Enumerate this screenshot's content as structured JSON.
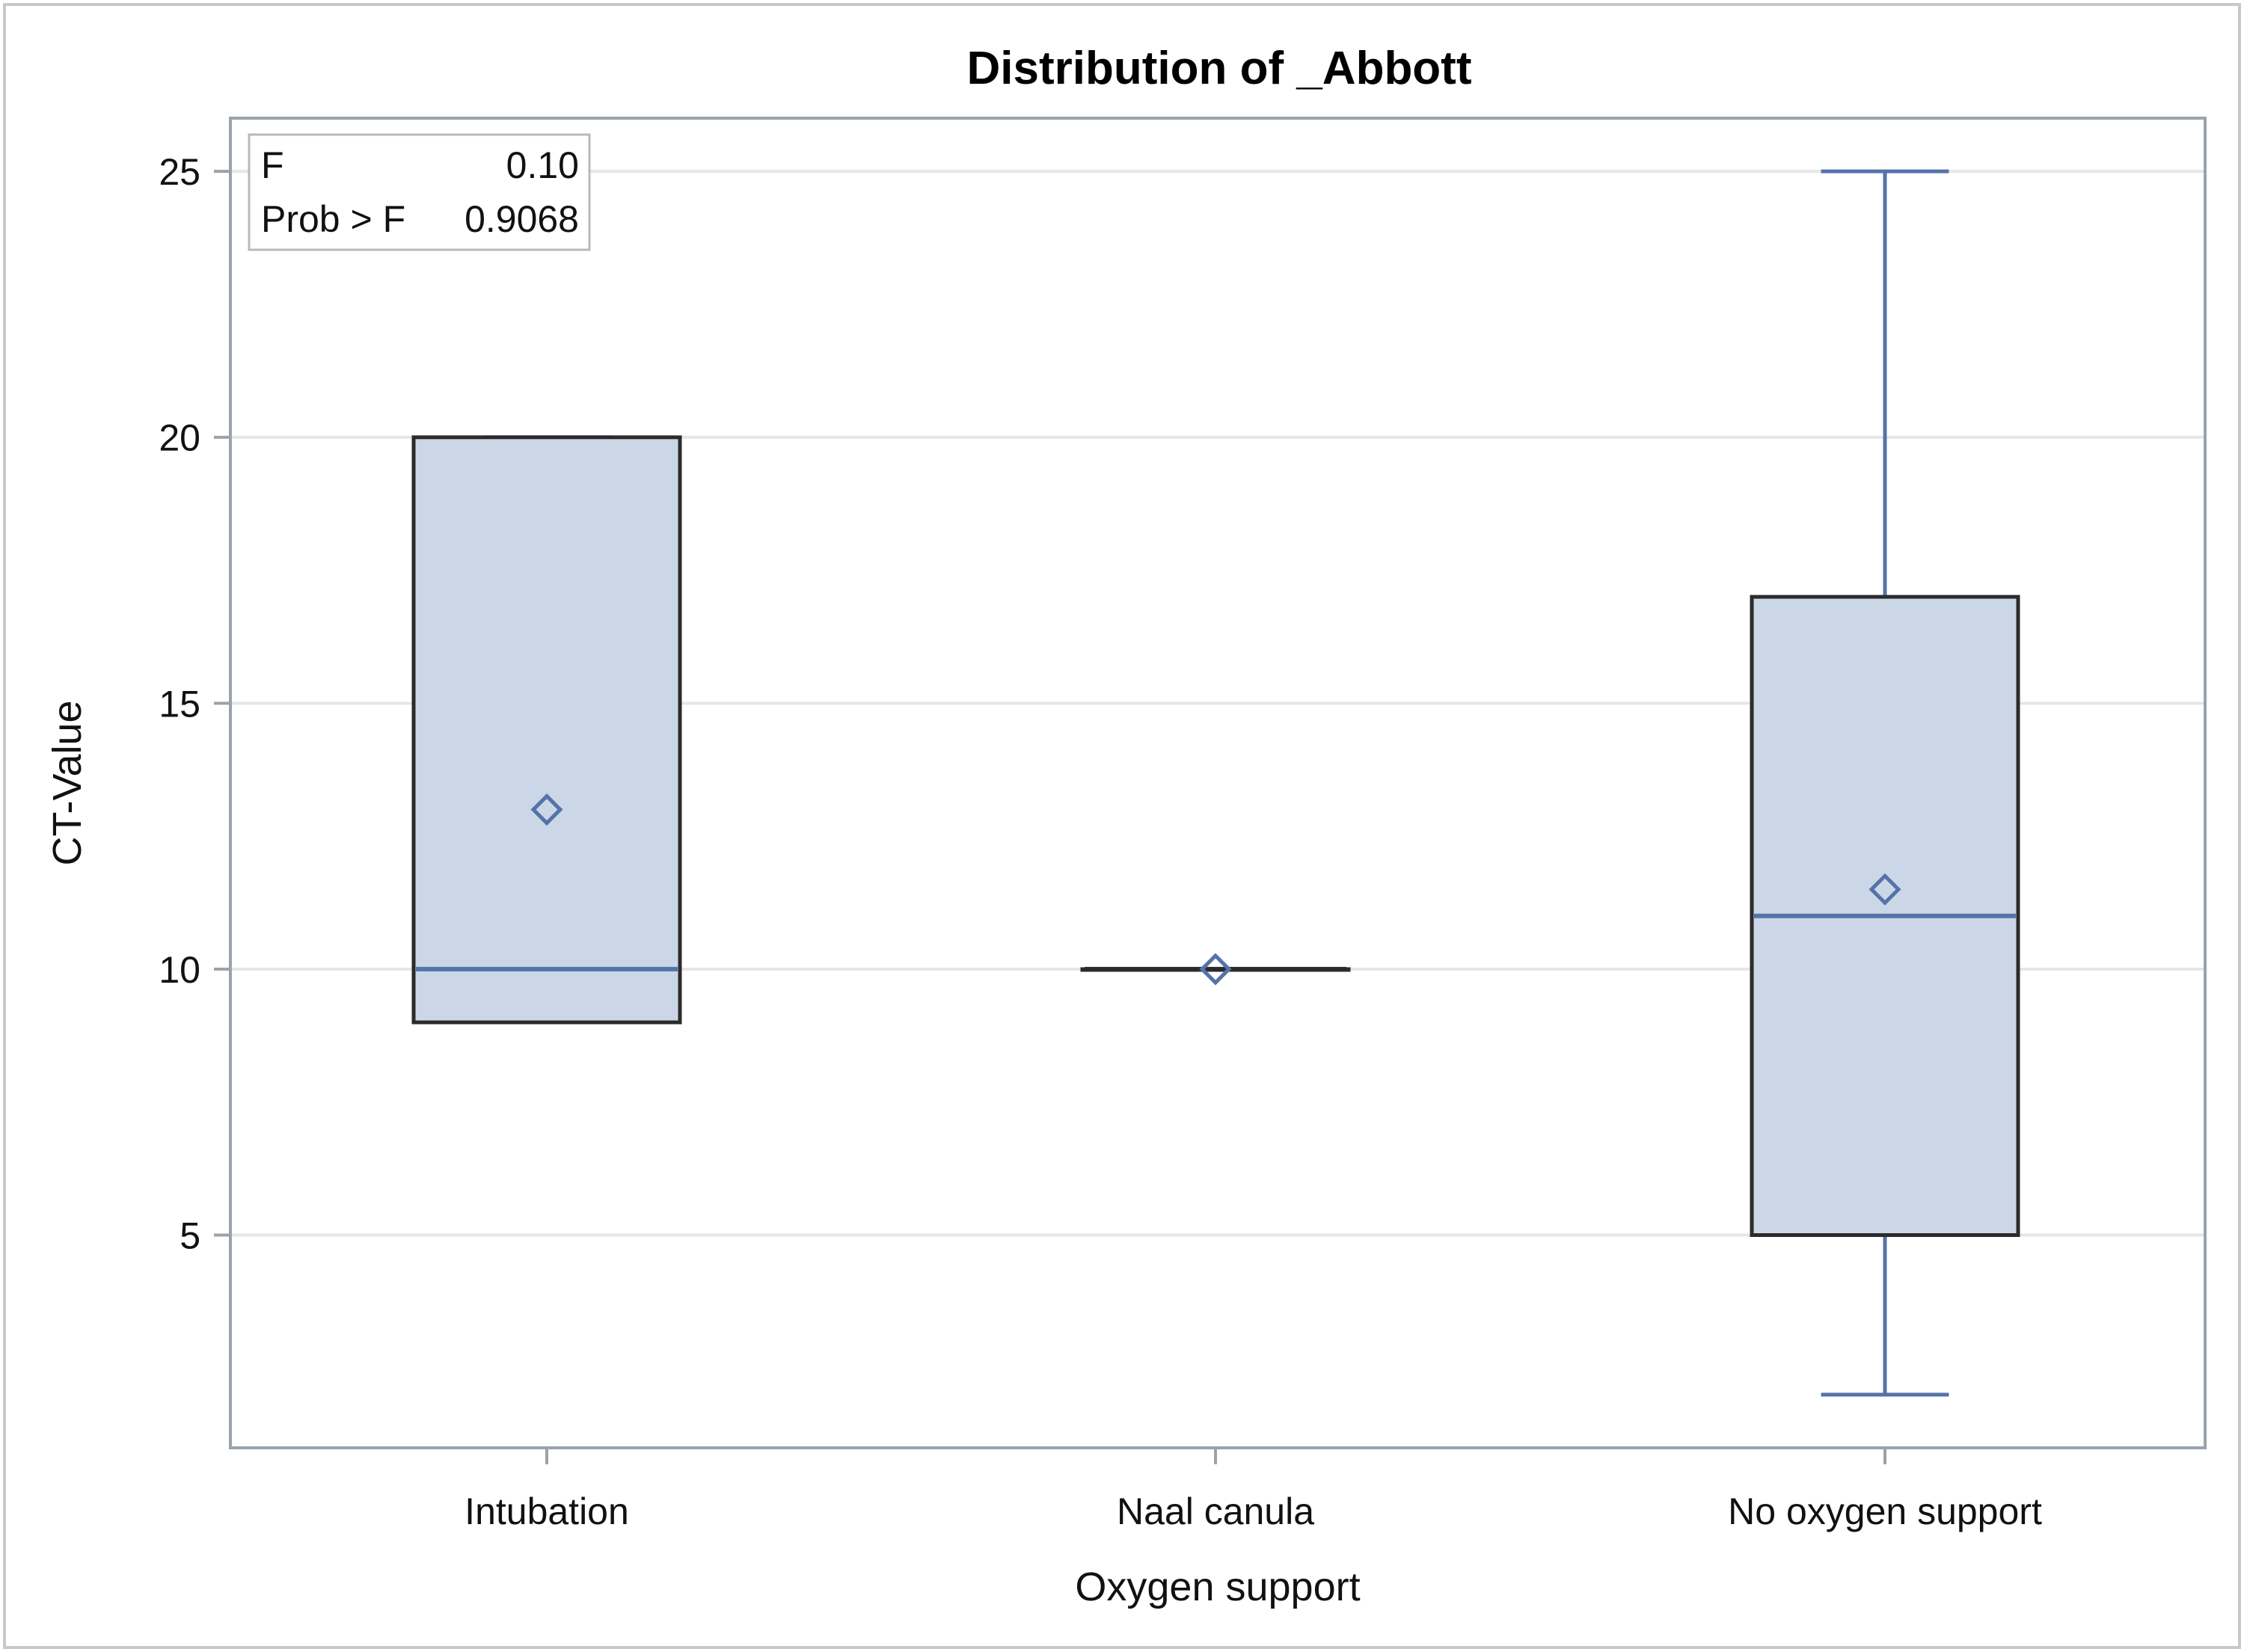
{
  "chart_data": {
    "type": "boxplot",
    "title": "Distribution of _Abbott",
    "xlabel": "Oxygen support",
    "ylabel": "CT-Value",
    "ylim": [
      1,
      26
    ],
    "yticks": [
      5,
      10,
      15,
      20,
      25
    ],
    "grid": true,
    "categories": [
      "Intubation",
      "Naal canula",
      "No oxygen support"
    ],
    "boxes": [
      {
        "category": "Intubation",
        "min": 9,
        "q1": 9,
        "median": 10,
        "q3": 20,
        "max": 20,
        "mean": 13
      },
      {
        "category": "Naal canula",
        "min": 10,
        "q1": 10,
        "median": 10,
        "q3": 10,
        "max": 10,
        "mean": 10
      },
      {
        "category": "No oxygen support",
        "min": 2,
        "q1": 5,
        "median": 11,
        "q3": 17,
        "max": 25,
        "mean": 11.5
      }
    ],
    "stats_box": {
      "rows": [
        {
          "label": "F",
          "value": "0.10"
        },
        {
          "label": "Prob > F",
          "value": "0.9068"
        }
      ],
      "placement": "top-left"
    },
    "colors": {
      "box_fill": "#cbd7e7",
      "box_outline": "#2b2b2b",
      "whisker": "#5573a8",
      "median": "#5573a8",
      "mean_marker": "#5573a8",
      "grid": "#e6e6e6",
      "frame": "#9aa2ab"
    }
  }
}
